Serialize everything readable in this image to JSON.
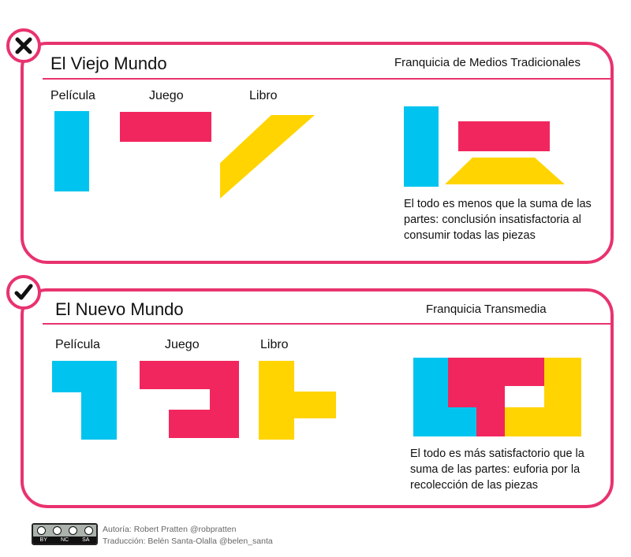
{
  "old_world": {
    "title": "El Viejo Mundo",
    "subtitle": "Franquicia de Medios Tradicionales",
    "labels": {
      "film": "Película",
      "game": "Juego",
      "book": "Libro"
    },
    "description": "El todo es menos que la suma de las partes: conclusión insatisfactoria al consumir todas las piezas",
    "badge_icon": "x-mark-icon"
  },
  "new_world": {
    "title": "El Nuevo Mundo",
    "subtitle": "Franquicia Transmedia",
    "labels": {
      "film": "Película",
      "game": "Juego",
      "book": "Libro"
    },
    "description": "El todo es más satisfactorio que la suma de las partes: euforia por la recolección de las piezas",
    "badge_icon": "check-mark-icon"
  },
  "colors": {
    "accent": "#e8336e",
    "film": "#00c4ef",
    "game": "#f2265e",
    "book": "#ffd400"
  },
  "credits": {
    "license": {
      "top": "cc",
      "bottom": [
        "BY",
        "NC",
        "SA"
      ]
    },
    "author": "Autoría: Robert Pratten @robpratten",
    "translation": "Traducción: Belén Santa-Olalla @belen_santa"
  }
}
